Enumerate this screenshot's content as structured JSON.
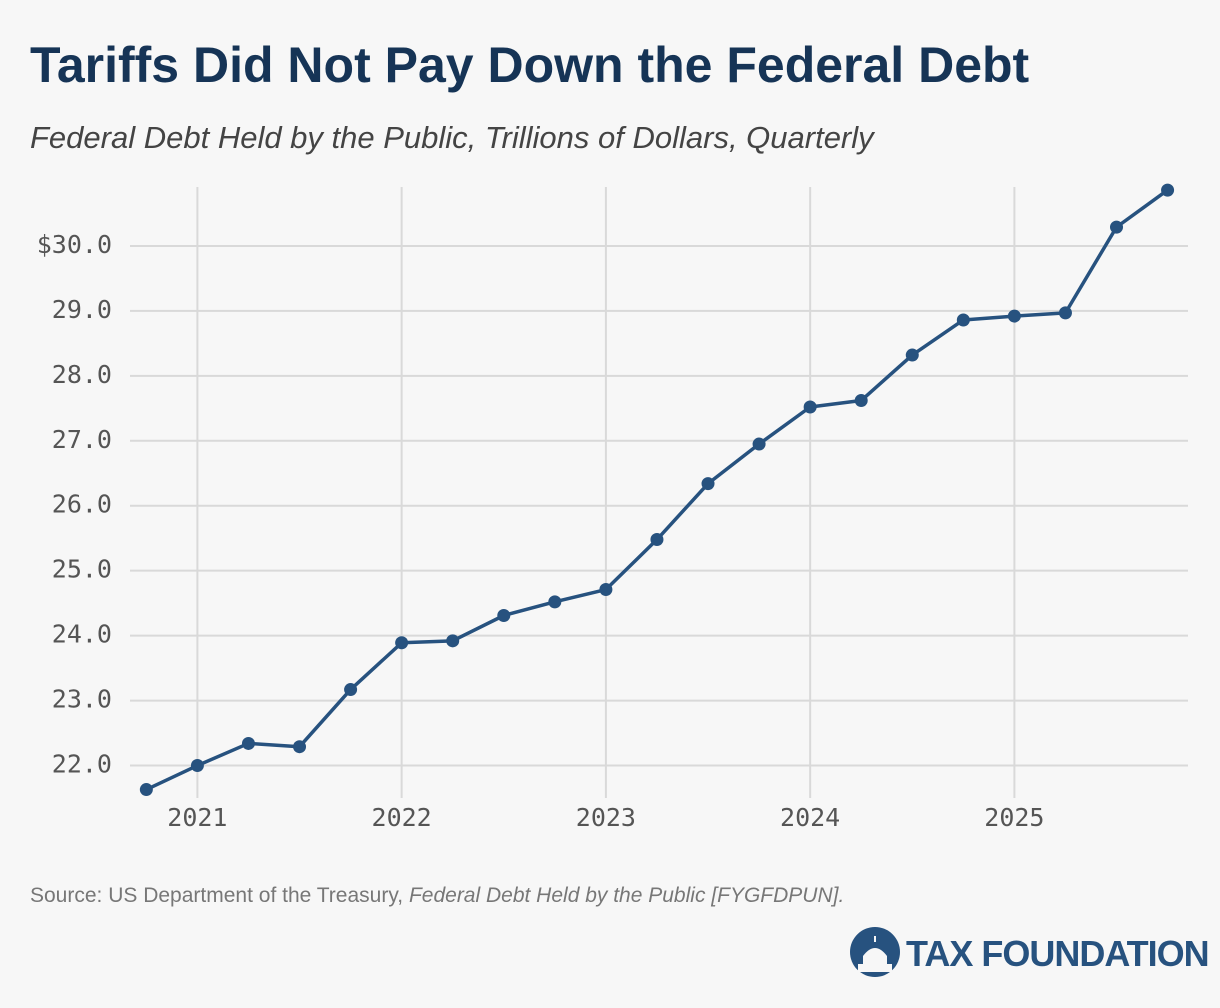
{
  "chart_data": {
    "type": "line",
    "title": "Tariffs Did Not Pay Down the Federal Debt",
    "subtitle": "Federal Debt Held by the Public, Trillions of Dollars, Quarterly",
    "x": [
      2020.75,
      2021.0,
      2021.25,
      2021.5,
      2021.75,
      2022.0,
      2022.25,
      2022.5,
      2022.75,
      2023.0,
      2023.25,
      2023.5,
      2023.75,
      2024.0,
      2024.25,
      2024.5,
      2024.75,
      2025.0,
      2025.25,
      2025.5,
      2025.75
    ],
    "values": [
      21.63,
      22.0,
      22.34,
      22.29,
      23.17,
      23.89,
      23.92,
      24.31,
      24.52,
      24.71,
      25.48,
      26.34,
      26.95,
      27.52,
      27.62,
      28.32,
      28.86,
      28.92,
      28.97,
      30.29,
      30.86
    ],
    "color": "#27527f",
    "xlim": [
      2020.67,
      2025.85
    ],
    "xticks": [
      2021,
      2022,
      2023,
      2024,
      2025
    ],
    "ylim": [
      21.5,
      31.0
    ],
    "yticks": [
      {
        "value": 22,
        "label": "22.0"
      },
      {
        "value": 23,
        "label": "23.0"
      },
      {
        "value": 24,
        "label": "24.0"
      },
      {
        "value": 25,
        "label": "25.0"
      },
      {
        "value": 26,
        "label": "26.0"
      },
      {
        "value": 27,
        "label": "27.0"
      },
      {
        "value": 28,
        "label": "28.0"
      },
      {
        "value": 29,
        "label": "29.0"
      },
      {
        "value": 30,
        "label": "$30.0"
      }
    ],
    "grid": true,
    "source": "Source: US Department of the Treasury,",
    "source_title": "Federal Debt Held by the Public [FYGFDPUN].",
    "logo": "TAX FOUNDATION"
  }
}
